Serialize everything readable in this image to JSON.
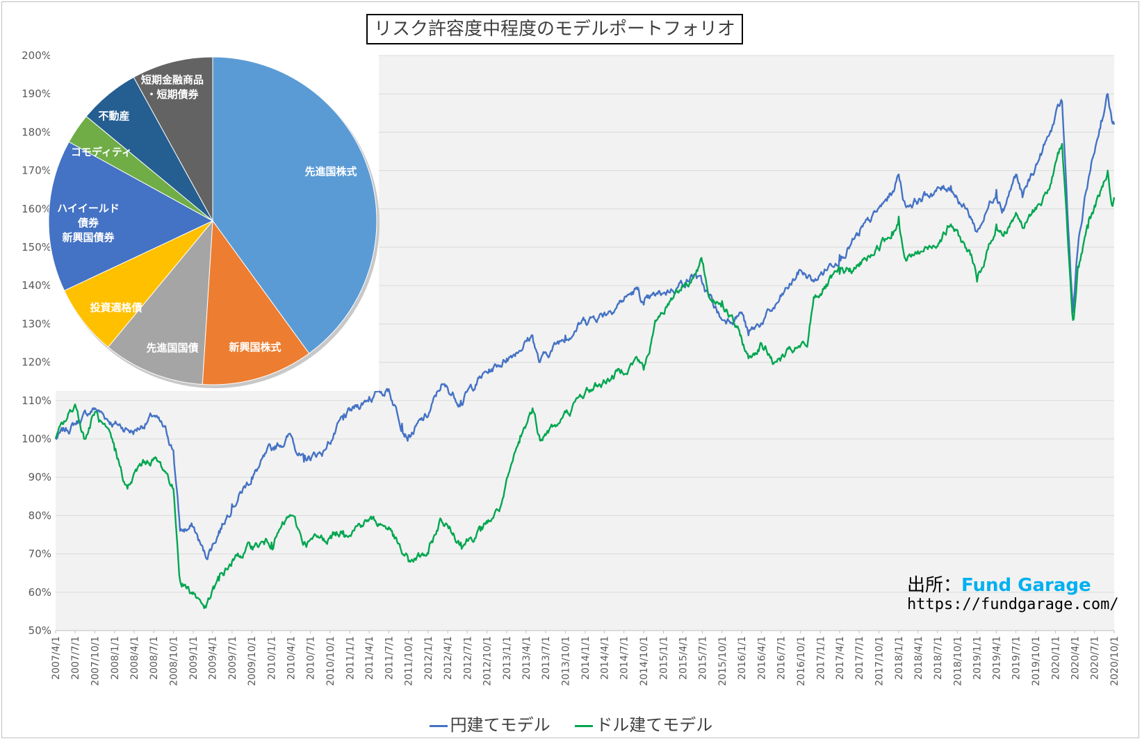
{
  "title": "リスク許容度中程度のモデルポートフォリオ",
  "source": {
    "label": "出所：",
    "brand": "Fund Garage",
    "url": "https://fundgarage.com/"
  },
  "colors": {
    "yen": "#4472c4",
    "usd": "#00a650",
    "plot_bg": "#f2f2f2",
    "grid": "#d9d9d9"
  },
  "chart_data": [
    {
      "type": "line",
      "title": "",
      "xlabel": "",
      "ylabel": "",
      "ylim": [
        50,
        200
      ],
      "y_ticks": [
        "50%",
        "60%",
        "70%",
        "80%",
        "90%",
        "100%",
        "110%",
        "120%",
        "130%",
        "140%",
        "150%",
        "160%",
        "170%",
        "180%",
        "190%",
        "200%"
      ],
      "x_range": [
        "2007/4/1",
        "2020/10/1"
      ],
      "x_ticks": [
        "2007/4/1",
        "2007/7/1",
        "2007/10/1",
        "2008/1/1",
        "2008/4/1",
        "2008/7/1",
        "2008/10/1",
        "2009/1/1",
        "2009/4/1",
        "2009/7/1",
        "2009/10/1",
        "2010/1/1",
        "2010/4/1",
        "2010/7/1",
        "2010/10/1",
        "2011/1/1",
        "2011/4/1",
        "2011/7/1",
        "2011/10/1",
        "2012/1/1",
        "2012/4/1",
        "2012/7/1",
        "2012/10/1",
        "2013/1/1",
        "2013/4/1",
        "2013/7/1",
        "2013/10/1",
        "2014/1/1",
        "2014/4/1",
        "2014/7/1",
        "2014/10/1",
        "2015/1/1",
        "2015/4/1",
        "2015/7/1",
        "2015/10/1",
        "2016/1/1",
        "2016/4/1",
        "2016/7/1",
        "2016/10/1",
        "2017/1/1",
        "2017/4/1",
        "2017/7/1",
        "2017/10/1",
        "2018/1/1",
        "2018/4/1",
        "2018/7/1",
        "2018/10/1",
        "2019/1/1",
        "2019/4/1",
        "2019/7/1",
        "2019/10/1",
        "2020/1/1",
        "2020/4/1",
        "2020/7/1",
        "2020/10/1"
      ],
      "grid": true,
      "legend": "bottom",
      "series": [
        {
          "name": "円建てモデル",
          "color": "#4472c4",
          "points": [
            [
              "2007/4/1",
              100
            ],
            [
              "2007/7/1",
              104
            ],
            [
              "2007/10/1",
              108
            ],
            [
              "2008/1/1",
              104
            ],
            [
              "2008/4/1",
              102
            ],
            [
              "2008/7/1",
              106
            ],
            [
              "2008/9/1",
              101
            ],
            [
              "2008/10/1",
              97
            ],
            [
              "2008/11/1",
              76
            ],
            [
              "2009/1/1",
              77
            ],
            [
              "2009/3/1",
              69
            ],
            [
              "2009/5/1",
              76
            ],
            [
              "2009/7/1",
              83
            ],
            [
              "2009/10/1",
              90
            ],
            [
              "2010/1/1",
              97
            ],
            [
              "2010/4/1",
              101
            ],
            [
              "2010/6/1",
              94
            ],
            [
              "2010/9/1",
              97
            ],
            [
              "2010/12/1",
              105
            ],
            [
              "2011/4/1",
              111
            ],
            [
              "2011/7/1",
              113
            ],
            [
              "2011/9/1",
              104
            ],
            [
              "2011/10/1",
              101
            ],
            [
              "2012/1/1",
              106
            ],
            [
              "2012/3/1",
              114
            ],
            [
              "2012/6/1",
              110
            ],
            [
              "2012/9/1",
              116
            ],
            [
              "2013/1/1",
              121
            ],
            [
              "2013/5/1",
              127
            ],
            [
              "2013/6/1",
              120
            ],
            [
              "2013/10/1",
              127
            ],
            [
              "2014/1/1",
              131
            ],
            [
              "2014/4/1",
              133
            ],
            [
              "2014/9/1",
              139
            ],
            [
              "2014/10/1",
              135
            ],
            [
              "2015/1/1",
              138
            ],
            [
              "2015/6/1",
              143
            ],
            [
              "2015/8/1",
              137
            ],
            [
              "2015/10/1",
              131
            ],
            [
              "2016/1/1",
              133
            ],
            [
              "2016/2/1",
              127
            ],
            [
              "2016/6/1",
              134
            ],
            [
              "2016/10/1",
              144
            ],
            [
              "2016/12/1",
              141
            ],
            [
              "2017/4/1",
              148
            ],
            [
              "2017/7/1",
              153
            ],
            [
              "2017/12/1",
              164
            ],
            [
              "2018/1/1",
              169
            ],
            [
              "2018/2/1",
              161
            ],
            [
              "2018/6/1",
              164
            ],
            [
              "2018/9/1",
              166
            ],
            [
              "2018/12/1",
              158
            ],
            [
              "2019/1/1",
              154
            ],
            [
              "2019/4/1",
              165
            ],
            [
              "2019/5/1",
              160
            ],
            [
              "2019/7/1",
              169
            ],
            [
              "2019/8/1",
              163
            ],
            [
              "2019/12/1",
              179
            ],
            [
              "2020/2/1",
              188
            ],
            [
              "2020/3/1",
              155
            ],
            [
              "2020/3/23",
              133
            ],
            [
              "2020/4/15",
              150
            ],
            [
              "2020/6/1",
              167
            ],
            [
              "2020/8/1",
              183
            ],
            [
              "2020/9/1",
              190
            ],
            [
              "2020/9/20",
              183
            ],
            [
              "2020/10/1",
              182
            ]
          ]
        },
        {
          "name": "ドル建てモデル",
          "color": "#00a650",
          "points": [
            [
              "2007/4/1",
              100
            ],
            [
              "2007/7/1",
              109
            ],
            [
              "2007/8/15",
              100
            ],
            [
              "2007/10/1",
              107
            ],
            [
              "2008/1/1",
              97
            ],
            [
              "2008/3/1",
              87
            ],
            [
              "2008/5/1",
              93
            ],
            [
              "2008/7/1",
              95
            ],
            [
              "2008/9/1",
              91
            ],
            [
              "2008/10/1",
              87
            ],
            [
              "2008/11/1",
              63
            ],
            [
              "2009/1/1",
              60
            ],
            [
              "2009/3/1",
              56
            ],
            [
              "2009/5/1",
              63
            ],
            [
              "2009/7/1",
              68
            ],
            [
              "2009/10/1",
              72
            ],
            [
              "2010/1/1",
              73
            ],
            [
              "2010/4/1",
              80
            ],
            [
              "2010/6/1",
              73
            ],
            [
              "2010/9/1",
              74
            ],
            [
              "2010/12/1",
              76
            ],
            [
              "2011/4/1",
              79
            ],
            [
              "2011/7/1",
              77
            ],
            [
              "2011/9/1",
              70
            ],
            [
              "2011/10/1",
              68
            ],
            [
              "2012/1/1",
              70
            ],
            [
              "2012/3/1",
              79
            ],
            [
              "2012/6/1",
              73
            ],
            [
              "2012/9/1",
              76
            ],
            [
              "2012/12/1",
              82
            ],
            [
              "2013/3/1",
              99
            ],
            [
              "2013/5/1",
              108
            ],
            [
              "2013/6/1",
              101
            ],
            [
              "2013/9/1",
              104
            ],
            [
              "2014/1/1",
              112
            ],
            [
              "2014/4/1",
              115
            ],
            [
              "2014/9/1",
              121
            ],
            [
              "2014/10/1",
              118
            ],
            [
              "2014/12/1",
              131
            ],
            [
              "2015/3/1",
              139
            ],
            [
              "2015/6/1",
              143
            ],
            [
              "2015/7/1",
              146
            ],
            [
              "2015/8/1",
              137
            ],
            [
              "2015/10/1",
              136
            ],
            [
              "2016/1/1",
              126
            ],
            [
              "2016/2/1",
              121
            ],
            [
              "2016/4/1",
              125
            ],
            [
              "2016/6/1",
              120
            ],
            [
              "2016/9/1",
              123
            ],
            [
              "2016/11/1",
              124
            ],
            [
              "2016/12/1",
              137
            ],
            [
              "2017/4/1",
              143
            ],
            [
              "2017/7/1",
              145
            ],
            [
              "2017/12/1",
              154
            ],
            [
              "2018/1/1",
              158
            ],
            [
              "2018/2/1",
              147
            ],
            [
              "2018/6/1",
              150
            ],
            [
              "2018/9/1",
              156
            ],
            [
              "2018/12/1",
              148
            ],
            [
              "2019/1/1",
              141
            ],
            [
              "2019/4/1",
              156
            ],
            [
              "2019/5/1",
              153
            ],
            [
              "2019/7/1",
              159
            ],
            [
              "2019/8/1",
              155
            ],
            [
              "2019/12/1",
              165
            ],
            [
              "2020/2/1",
              177
            ],
            [
              "2020/3/1",
              150
            ],
            [
              "2020/3/23",
              131
            ],
            [
              "2020/4/15",
              145
            ],
            [
              "2020/6/1",
              155
            ],
            [
              "2020/8/1",
              165
            ],
            [
              "2020/9/1",
              170
            ],
            [
              "2020/9/20",
              161
            ],
            [
              "2020/10/1",
              163
            ]
          ]
        }
      ]
    },
    {
      "type": "pie",
      "title": "",
      "slices": [
        {
          "label": "先進国株式",
          "value": 40,
          "color": "#5b9bd5"
        },
        {
          "label": "新興国株式",
          "value": 11,
          "color": "#ed7d31"
        },
        {
          "label": "先進国国債",
          "value": 10,
          "color": "#a5a5a5"
        },
        {
          "label": "投資適格債",
          "value": 7,
          "color": "#ffc000"
        },
        {
          "label": "ハイイールド\n債券\n新興国債券",
          "value": 15,
          "color": "#4472c4"
        },
        {
          "label": "コモディティ",
          "value": 3,
          "color": "#70ad47"
        },
        {
          "label": "不動産",
          "value": 6,
          "color": "#255e91"
        },
        {
          "label": "短期金融商品\n・短期債券",
          "value": 8,
          "color": "#636363"
        }
      ]
    }
  ]
}
